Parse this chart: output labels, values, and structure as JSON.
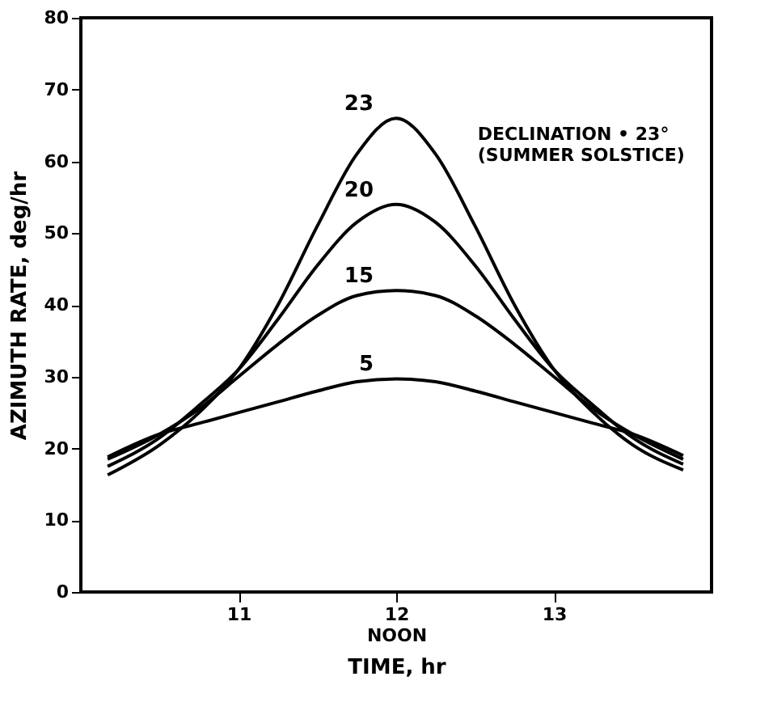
{
  "chart_data": {
    "type": "line",
    "xlabel": "TIME, hr",
    "ylabel": "AZIMUTH RATE, deg/hr",
    "xlim": [
      10,
      14
    ],
    "xticks": [
      11,
      {
        "value": 12,
        "label": "12\nNOON"
      },
      13
    ],
    "ylim": [
      0,
      80
    ],
    "yticks": [
      0,
      10,
      20,
      30,
      40,
      50,
      60,
      70,
      80
    ],
    "grid": false,
    "legend": false,
    "marker": "none",
    "line_style": "solid",
    "x": [
      10.17,
      10.5,
      10.75,
      11,
      11.25,
      11.5,
      11.75,
      12,
      12.25,
      12.5,
      12.75,
      13,
      13.25,
      13.5,
      13.82
    ],
    "series": [
      {
        "name": "23",
        "color": "#000000",
        "values": [
          16.3,
          20.5,
          25,
          31,
          40,
          51,
          61,
          66,
          61,
          51,
          40,
          31,
          25,
          20.5,
          17
        ]
      },
      {
        "name": "20",
        "color": "#000000",
        "values": [
          17.5,
          21.5,
          26,
          31,
          38,
          45.5,
          51.5,
          54,
          51.5,
          45.5,
          38,
          31,
          26,
          21.5,
          17.8
        ]
      },
      {
        "name": "15",
        "color": "#000000",
        "values": [
          18.5,
          22,
          25.5,
          30,
          34.5,
          38.5,
          41.3,
          42,
          41.3,
          38.5,
          34.5,
          30,
          25.5,
          22,
          18.5
        ]
      },
      {
        "name": "5",
        "color": "#000000",
        "values": [
          18.8,
          22,
          23.5,
          25,
          26.5,
          28,
          29.3,
          29.7,
          29.3,
          28,
          26.5,
          25,
          23.5,
          22,
          19
        ]
      }
    ],
    "annotations": [
      {
        "text": "DECLINATION • 23°\n(SUMMER SOLSTICE)",
        "x": 12.25,
        "y": 63
      }
    ]
  }
}
